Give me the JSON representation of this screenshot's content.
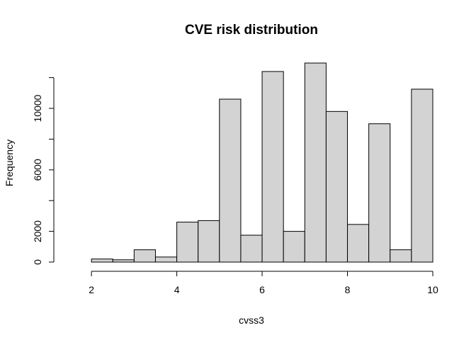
{
  "chart_data": {
    "type": "bar",
    "title": "CVE risk distribution",
    "xlabel": "cvss3",
    "ylabel": "Frequency",
    "bin_edges": [
      1.5,
      2.0,
      2.5,
      3.0,
      3.5,
      4.0,
      4.5,
      5.0,
      5.5,
      6.0,
      6.5,
      7.0,
      7.5,
      8.0,
      8.5,
      9.0,
      9.5,
      10.0
    ],
    "values": [
      0,
      200,
      150,
      800,
      330,
      2600,
      2700,
      10600,
      1750,
      12400,
      2000,
      12950,
      9800,
      2450,
      9000,
      800,
      11250
    ],
    "xlim": [
      1.5,
      10
    ],
    "ylim": [
      0,
      12950
    ],
    "x_ticks": [
      2,
      4,
      6,
      8,
      10
    ],
    "y_ticks": [
      0,
      2000,
      6000,
      10000
    ],
    "y_tick_marks": [
      0,
      2000,
      4000,
      6000,
      8000,
      10000,
      12000
    ],
    "grid": false,
    "bar_color": "#d3d3d3",
    "edge_color": "#000000"
  }
}
